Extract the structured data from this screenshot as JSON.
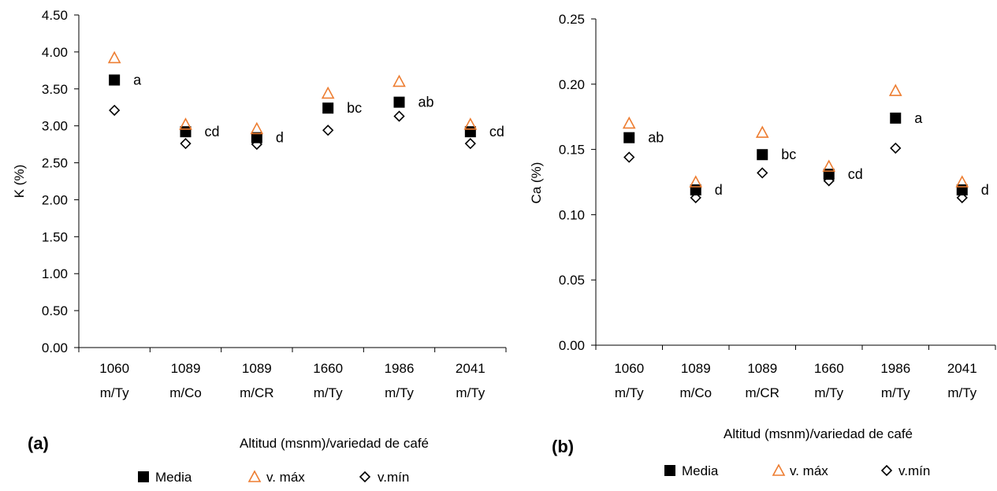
{
  "chart_data": [
    {
      "type": "scatter",
      "panel_label": "(a)",
      "xlabel": "Altitud (msnm)/variedad de café",
      "ylabel": "K (%)",
      "categories": [
        [
          "1060",
          "m/Ty"
        ],
        [
          "1089",
          "m/Co"
        ],
        [
          "1089",
          "m/CR"
        ],
        [
          "1660",
          "m/Ty"
        ],
        [
          "1986",
          "m/Ty"
        ],
        [
          "2041",
          "m/Ty"
        ]
      ],
      "ylim": [
        0,
        4.5
      ],
      "yticks": [
        "0.00",
        "0.50",
        "1.00",
        "1.50",
        "2.00",
        "2.50",
        "3.00",
        "3.50",
        "4.00",
        "4.50"
      ],
      "series": [
        {
          "name": "Media",
          "marker": "filled-square",
          "color": "#000000",
          "values": [
            3.62,
            2.92,
            2.84,
            3.24,
            3.32,
            2.92
          ]
        },
        {
          "name": "v. máx",
          "marker": "open-triangle",
          "color": "#ed7d31",
          "values": [
            3.92,
            3.02,
            2.96,
            3.44,
            3.6,
            3.02
          ]
        },
        {
          "name": "v.mín",
          "marker": "open-diamond",
          "color": "#000000",
          "values": [
            3.21,
            2.76,
            2.75,
            2.94,
            3.13,
            2.76
          ]
        }
      ],
      "significance_labels": [
        "a",
        "cd",
        "d",
        "bc",
        "ab",
        "cd"
      ],
      "legend_position": "bottom",
      "grid": false
    },
    {
      "type": "scatter",
      "panel_label": "(b)",
      "xlabel": "Altitud (msnm)/variedad de café",
      "ylabel": "Ca (%)",
      "categories": [
        [
          "1060",
          "m/Ty"
        ],
        [
          "1089",
          "m/Co"
        ],
        [
          "1089",
          "m/CR"
        ],
        [
          "1660",
          "m/Ty"
        ],
        [
          "1986",
          "m/Ty"
        ],
        [
          "2041",
          "m/Ty"
        ]
      ],
      "ylim": [
        0,
        0.25
      ],
      "yticks": [
        "0.00",
        "0.05",
        "0.10",
        "0.15",
        "0.20",
        "0.25"
      ],
      "series": [
        {
          "name": "Media",
          "marker": "filled-square",
          "color": "#000000",
          "values": [
            0.159,
            0.119,
            0.146,
            0.131,
            0.174,
            0.119
          ]
        },
        {
          "name": "v. máx",
          "marker": "open-triangle",
          "color": "#ed7d31",
          "values": [
            0.17,
            0.125,
            0.163,
            0.137,
            0.195,
            0.125
          ]
        },
        {
          "name": "v.mín",
          "marker": "open-diamond",
          "color": "#000000",
          "values": [
            0.144,
            0.113,
            0.132,
            0.126,
            0.151,
            0.113
          ]
        }
      ],
      "significance_labels": [
        "ab",
        "d",
        "bc",
        "cd",
        "a",
        "d"
      ],
      "legend_position": "bottom",
      "grid": false
    }
  ]
}
